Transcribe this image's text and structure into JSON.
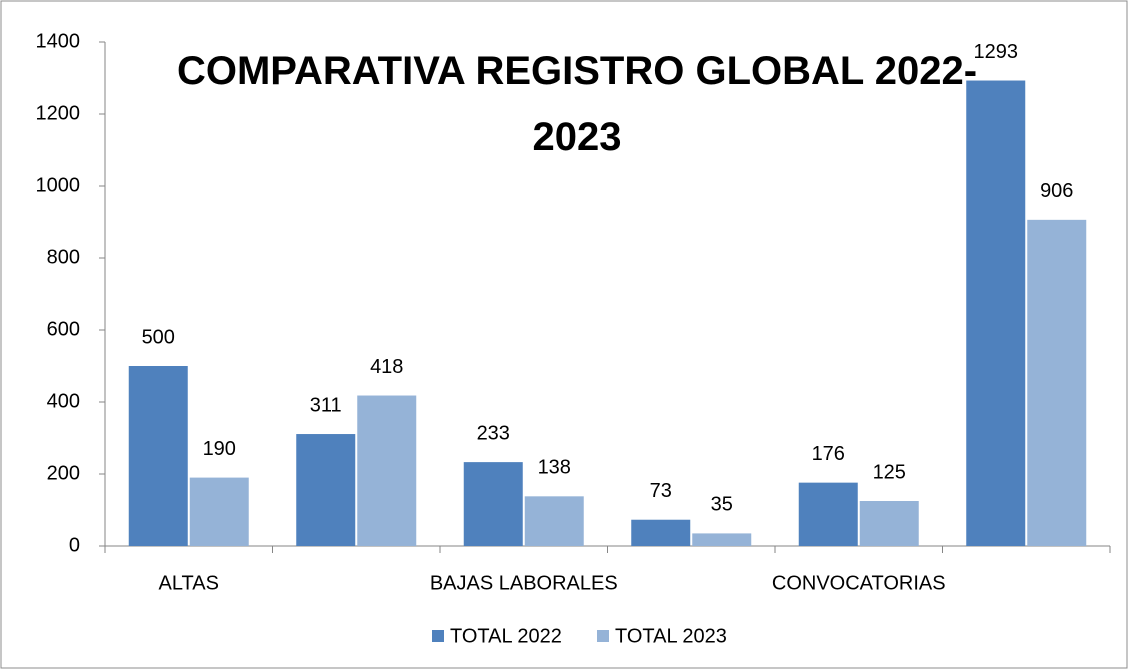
{
  "chart_data": {
    "type": "bar",
    "title": "COMPARATIVA REGISTRO GLOBAL 2022-2023",
    "categories": [
      "ALTAS",
      null,
      "BAJAS LABORALES",
      null,
      "CONVOCATORIAS",
      null
    ],
    "series": [
      {
        "name": "TOTAL 2022",
        "color": "#4f81bd",
        "values": [
          500,
          311,
          233,
          73,
          176,
          1293
        ]
      },
      {
        "name": "TOTAL 2023",
        "color": "#95b3d7",
        "values": [
          190,
          418,
          138,
          35,
          125,
          906
        ]
      }
    ],
    "ylim": [
      0,
      1400
    ],
    "yticks": [
      0,
      200,
      400,
      600,
      800,
      1000,
      1200,
      1400
    ],
    "grid": false,
    "legend": "bottom"
  }
}
